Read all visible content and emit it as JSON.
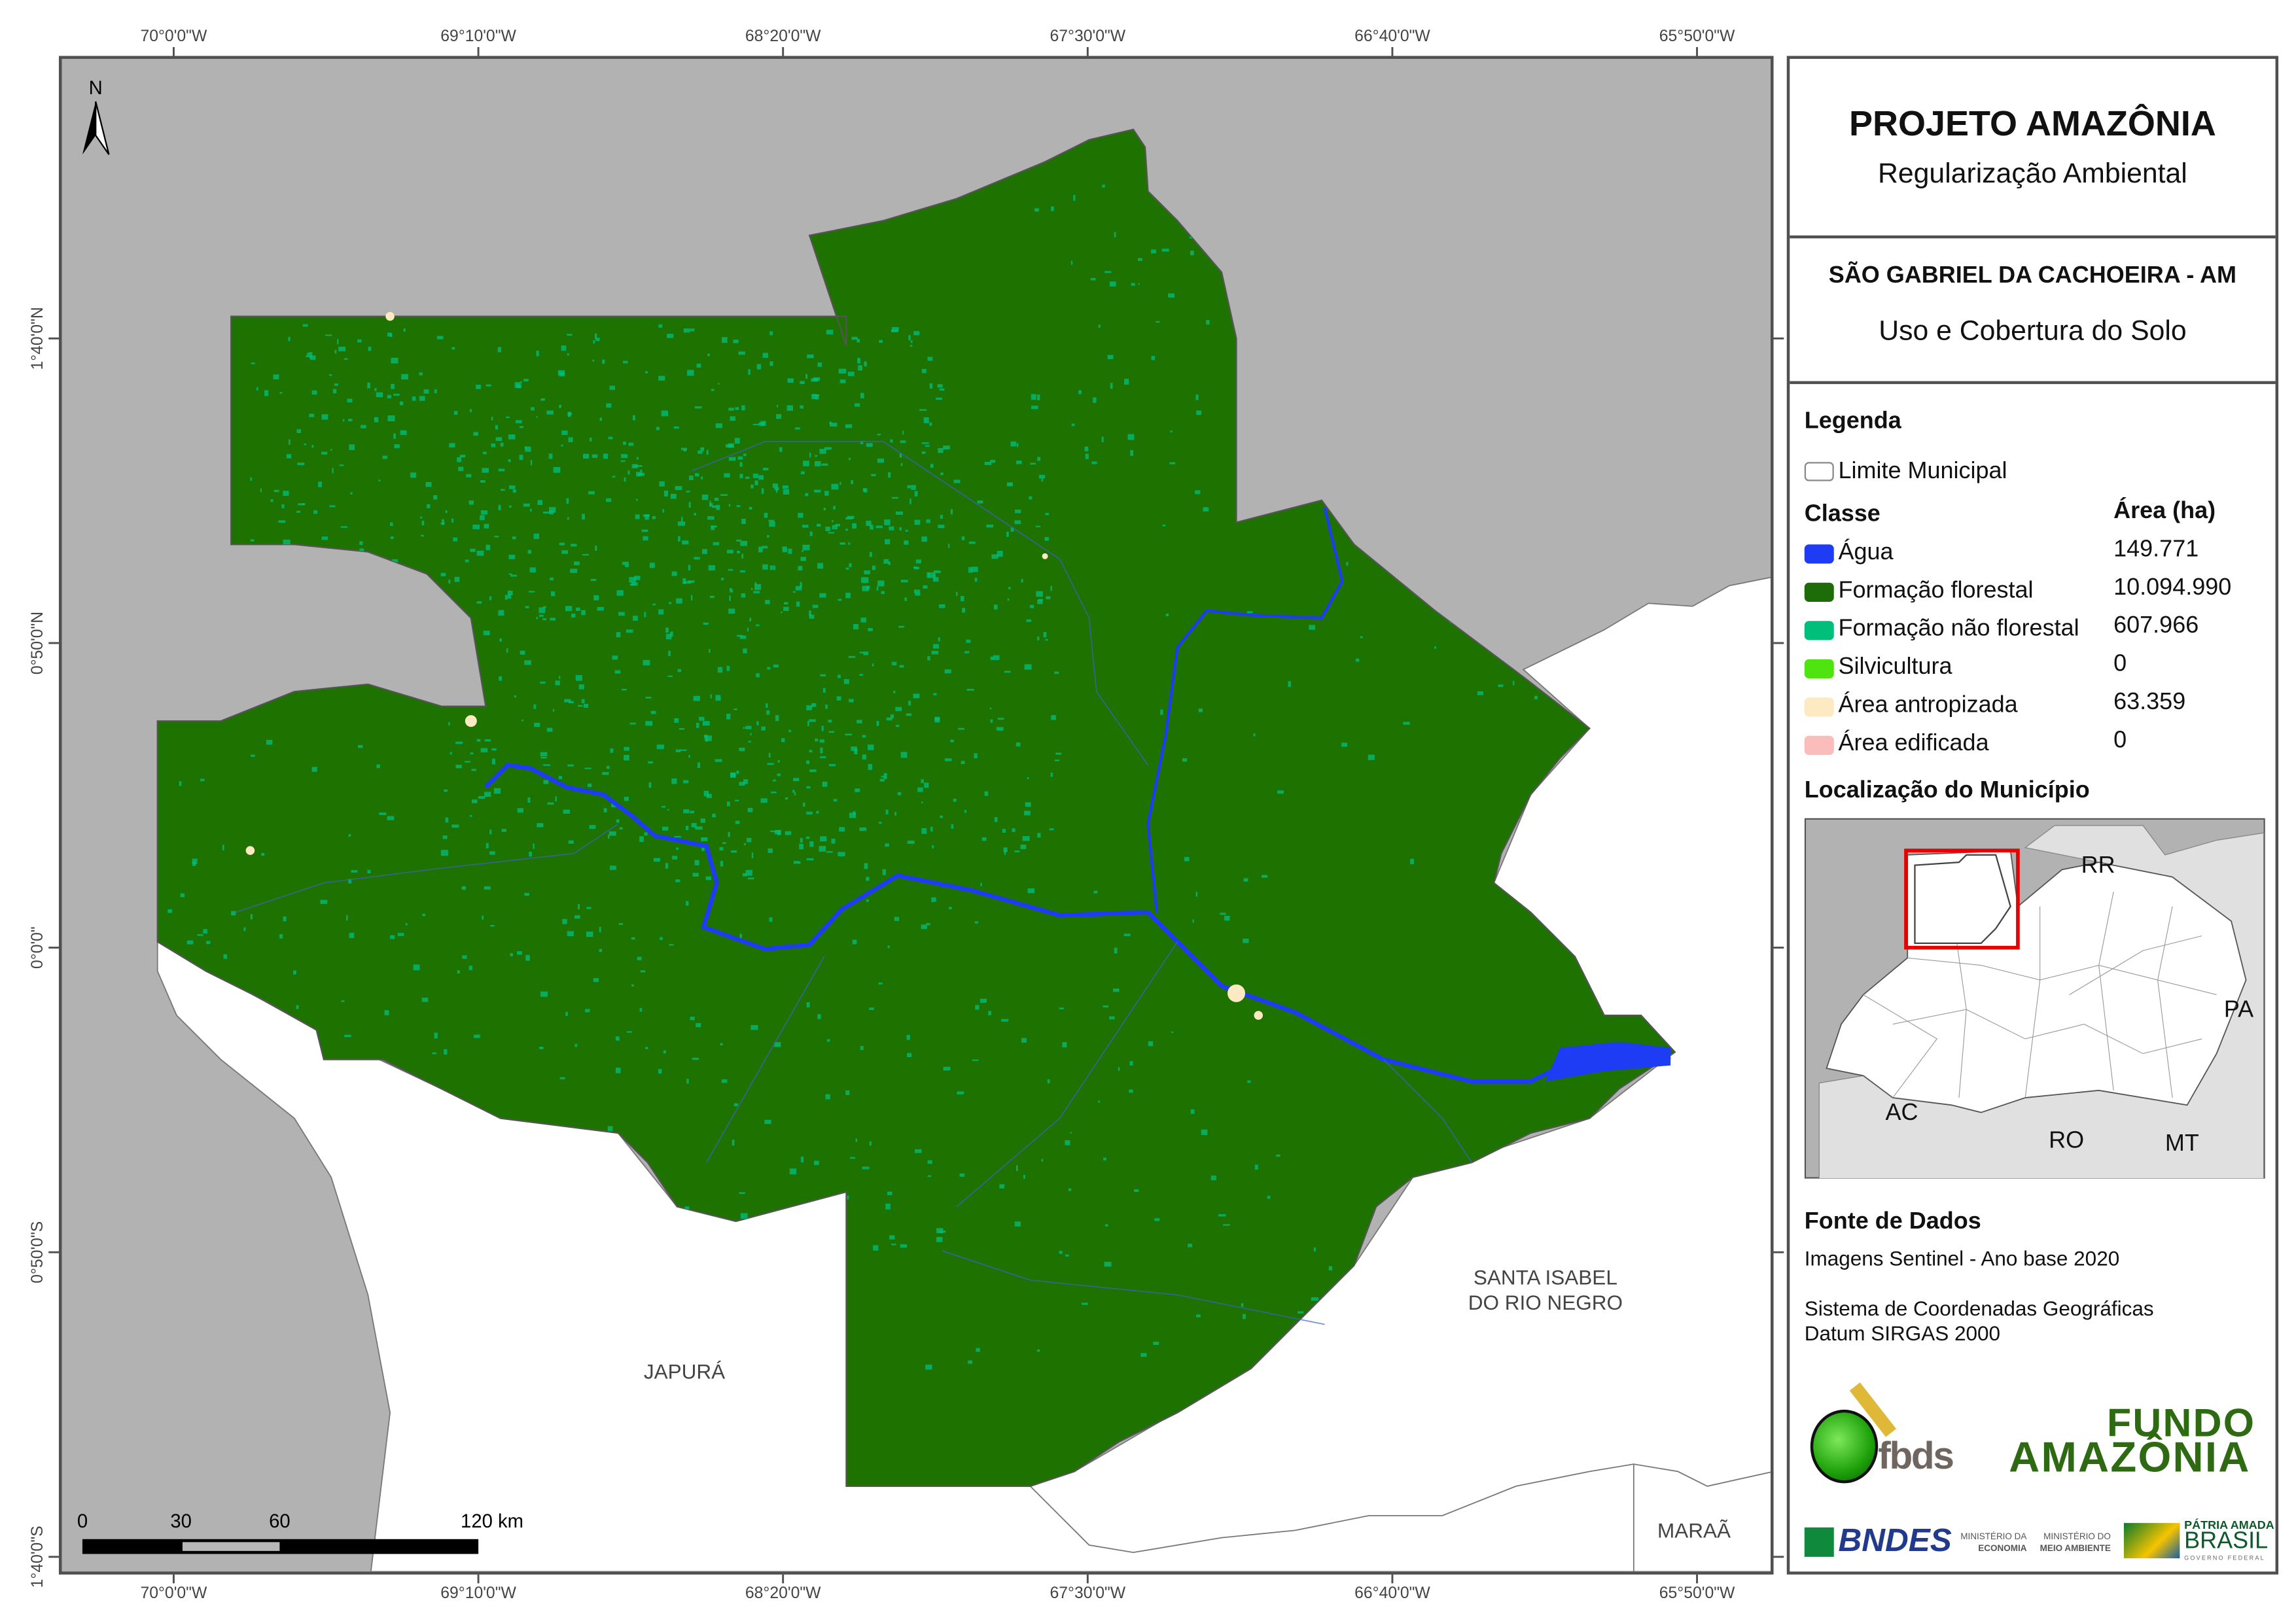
{
  "axes": {
    "longitude_ticks": [
      "70°0'0\"W",
      "69°10'0\"W",
      "68°20'0\"W",
      "67°30'0\"W",
      "66°40'0\"W",
      "65°50'0\"W"
    ],
    "latitude_ticks": [
      "1°40'0\"N",
      "0°50'0\"N",
      "0°0'0\"",
      "0°50'0\"S",
      "1°40'0\"S"
    ]
  },
  "map": {
    "north_arrow_label": "N",
    "labels": {
      "japura": "JAPURÁ",
      "santa_isabel_line1": "SANTA ISABEL",
      "santa_isabel_line2": "DO RIO NEGRO",
      "maraa": "MARAÃ"
    },
    "scale_bar": {
      "ticks": [
        "0",
        "30",
        "60",
        "120 km"
      ]
    },
    "colors": {
      "outside": "#b2b2b2",
      "neighbors": "#ffffff",
      "forest": "#1e7200",
      "water": "#1f3cf5",
      "non_forest": "#00c080"
    }
  },
  "panel": {
    "title": "PROJETO AMAZÔNIA",
    "subtitle": "Regularização Ambiental",
    "municipality": "SÃO GABRIEL DA CACHOEIRA - AM",
    "theme": "Uso e Cobertura do Solo",
    "legend_heading": "Legenda",
    "boundary_label": "Limite Municipal",
    "class_header": "Classe",
    "area_header": "Área (ha)",
    "classes": [
      {
        "label": "Água",
        "area": "149.771",
        "color": "#1f3cf5"
      },
      {
        "label": "Formação florestal",
        "area": "10.094.990",
        "color": "#1e6b0a"
      },
      {
        "label": "Formação não florestal",
        "area": "607.966",
        "color": "#00bf7a"
      },
      {
        "label": "Silvicultura",
        "area": "0",
        "color": "#4fe30f"
      },
      {
        "label": "Área antropizada",
        "area": "63.359",
        "color": "#fde9c2"
      },
      {
        "label": "Área edificada",
        "area": "0",
        "color": "#fbbcbc"
      }
    ],
    "location_heading": "Localização do Município",
    "inset_labels": [
      "RR",
      "PA",
      "AC",
      "RO",
      "MT"
    ],
    "sources_heading": "Fonte de Dados",
    "sources_line1": "Imagens Sentinel - Ano base 2020",
    "crs_line1": "Sistema de Coordenadas Geográficas",
    "crs_line2": "Datum SIRGAS 2000",
    "logos": {
      "fbds": "fbds",
      "fundo_line1": "FUNDO",
      "fundo_line2": "AMAZÔNIA",
      "bndes": "BNDES",
      "min_eco_1": "MINISTÉRIO DA",
      "min_eco_2": "ECONOMIA",
      "min_ma_1": "MINISTÉRIO DO",
      "min_ma_2": "MEIO AMBIENTE",
      "patria_1": "PÁTRIA AMADA",
      "patria_2": "BRASIL",
      "patria_3": "GOVERNO FEDERAL"
    }
  }
}
